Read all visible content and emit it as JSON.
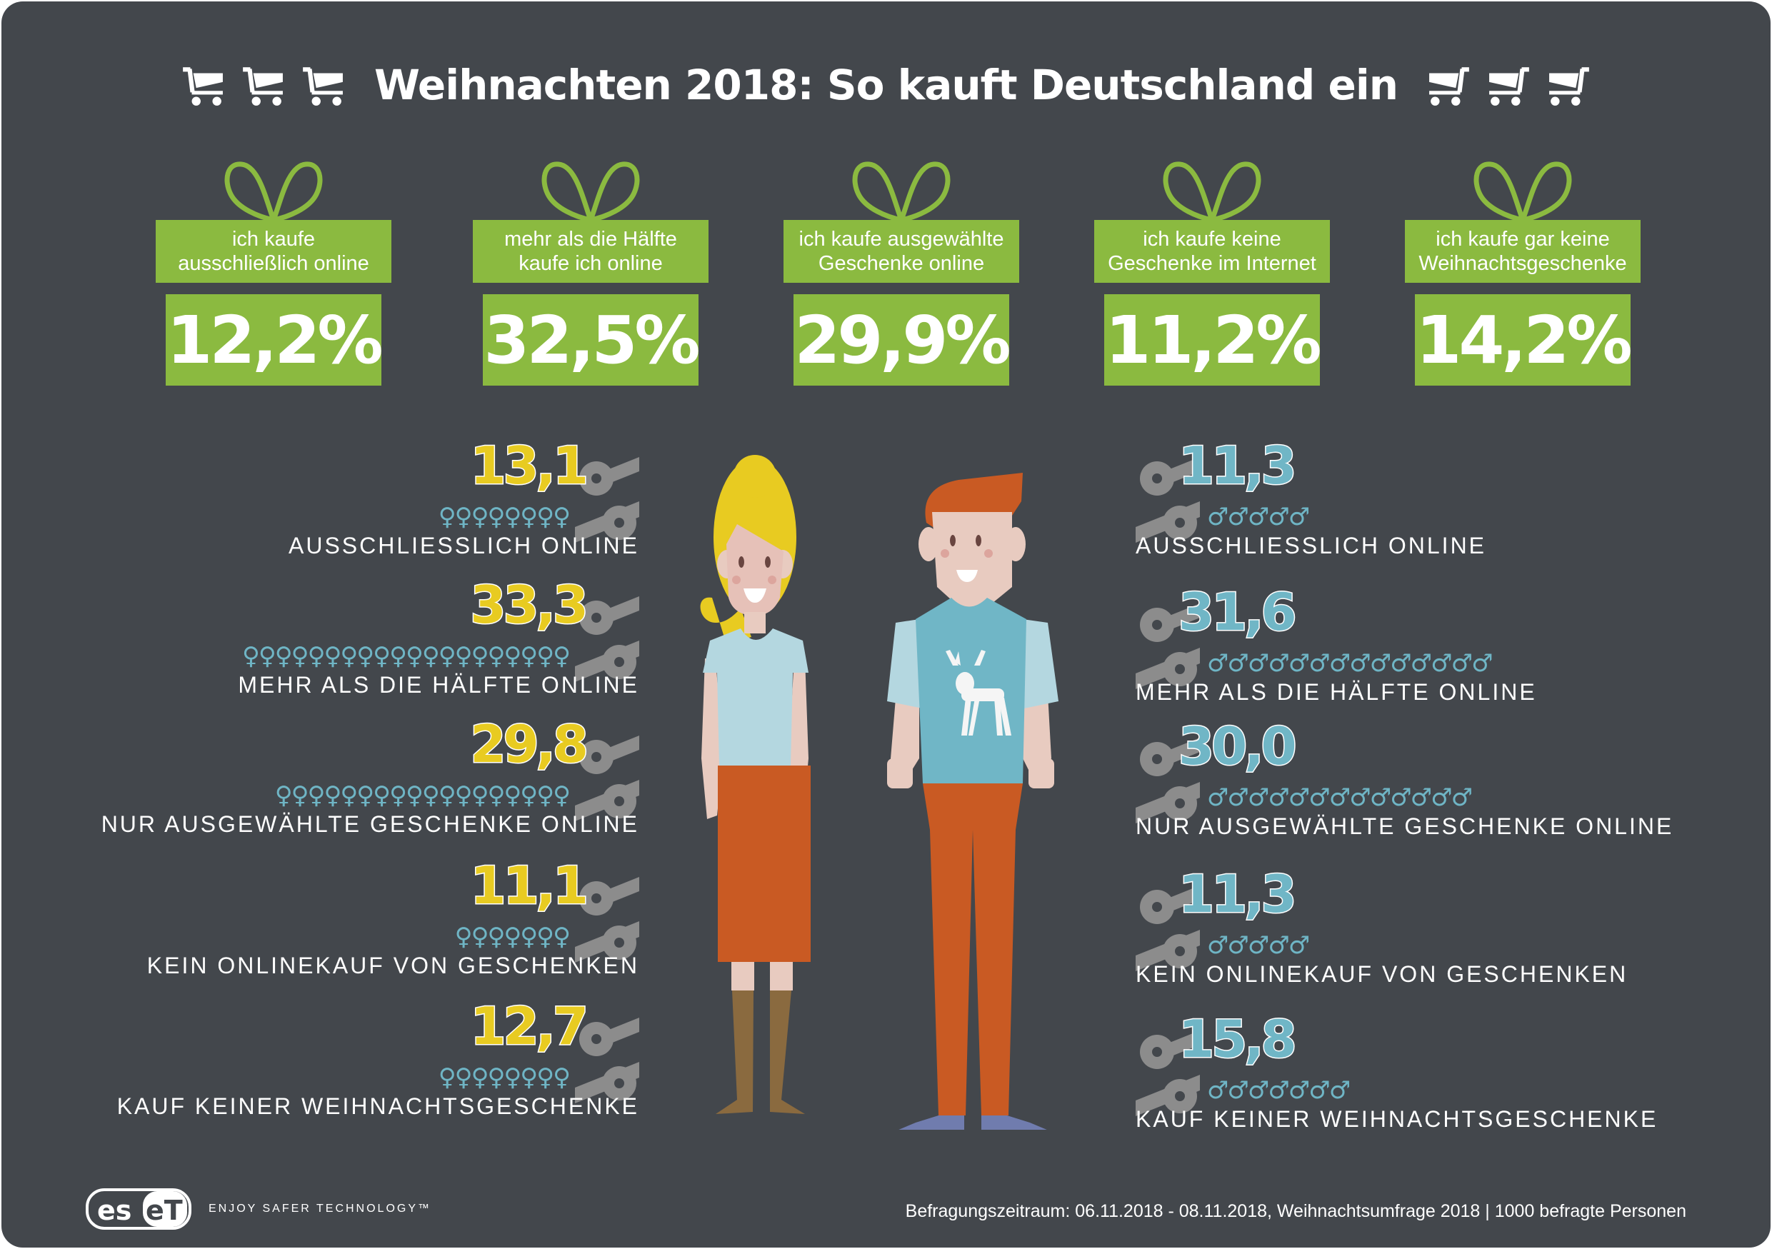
{
  "title": "Weihnachten 2018: So kauft Deutschland ein",
  "title_icons": {
    "left": [
      "cart-icon",
      "cart-icon",
      "cart-icon"
    ],
    "right": [
      "cart-icon",
      "cart-icon",
      "cart-icon"
    ]
  },
  "colors": {
    "background": "#43474c",
    "gift_green": "#8bba40",
    "female_yellow": "#e8cb21",
    "male_blue": "#70b6c6",
    "gender_icon": "#6fb5c5",
    "percent_grey": "#8c8c8c"
  },
  "overall": [
    {
      "label_lines": [
        "ich kaufe",
        "ausschließlich online"
      ],
      "value": "12,2%"
    },
    {
      "label_lines": [
        "mehr als die Hälfte",
        "kaufe ich online"
      ],
      "value": "32,5%"
    },
    {
      "label_lines": [
        "ich kaufe ausgewählte",
        "Geschenke online"
      ],
      "value": "29,9%"
    },
    {
      "label_lines": [
        "ich kaufe keine",
        "Geschenke im Internet"
      ],
      "value": "11,2%"
    },
    {
      "label_lines": [
        "ich kaufe gar keine",
        "Weihnachtsgeschenke"
      ],
      "value": "14,2%"
    }
  ],
  "women": {
    "icon": "female-symbol-icon",
    "rows": [
      {
        "value": "13,1",
        "icon_count": 8,
        "label": "AUSSCHLIESSLICH ONLINE"
      },
      {
        "value": "33,3",
        "icon_count": 20,
        "label": "MEHR ALS DIE HÄLFTE ONLINE"
      },
      {
        "value": "29,8",
        "icon_count": 18,
        "label": "NUR AUSGEWÄHLTE GESCHENKE ONLINE"
      },
      {
        "value": "11,1",
        "icon_count": 7,
        "label": "KEIN ONLINEKAUF VON GESCHENKEN"
      },
      {
        "value": "12,7",
        "icon_count": 8,
        "label": "KAUF KEINER WEIHNACHTSGESCHENKE"
      }
    ]
  },
  "men": {
    "icon": "male-symbol-icon",
    "rows": [
      {
        "value": "11,3",
        "icon_count": 5,
        "label": "AUSSCHLIESSLICH ONLINE"
      },
      {
        "value": "31,6",
        "icon_count": 14,
        "label": "MEHR ALS DIE HÄLFTE ONLINE"
      },
      {
        "value": "30,0",
        "icon_count": 13,
        "label": "NUR AUSGEWÄHLTE GESCHENKE ONLINE"
      },
      {
        "value": "11,3",
        "icon_count": 5,
        "label": "KEIN ONLINEKAUF VON GESCHENKEN"
      },
      {
        "value": "15,8",
        "icon_count": 7,
        "label": "KAUF KEINER WEIHNACHTSGESCHENKE"
      }
    ]
  },
  "footer": {
    "logo_text": "eset",
    "tagline": "ENJOY SAFER TECHNOLOGY™",
    "note": "Befragungszeitraum: 06.11.2018 - 08.11.2018, Weihnachtsumfrage 2018  |  1000 befragte Personen"
  }
}
